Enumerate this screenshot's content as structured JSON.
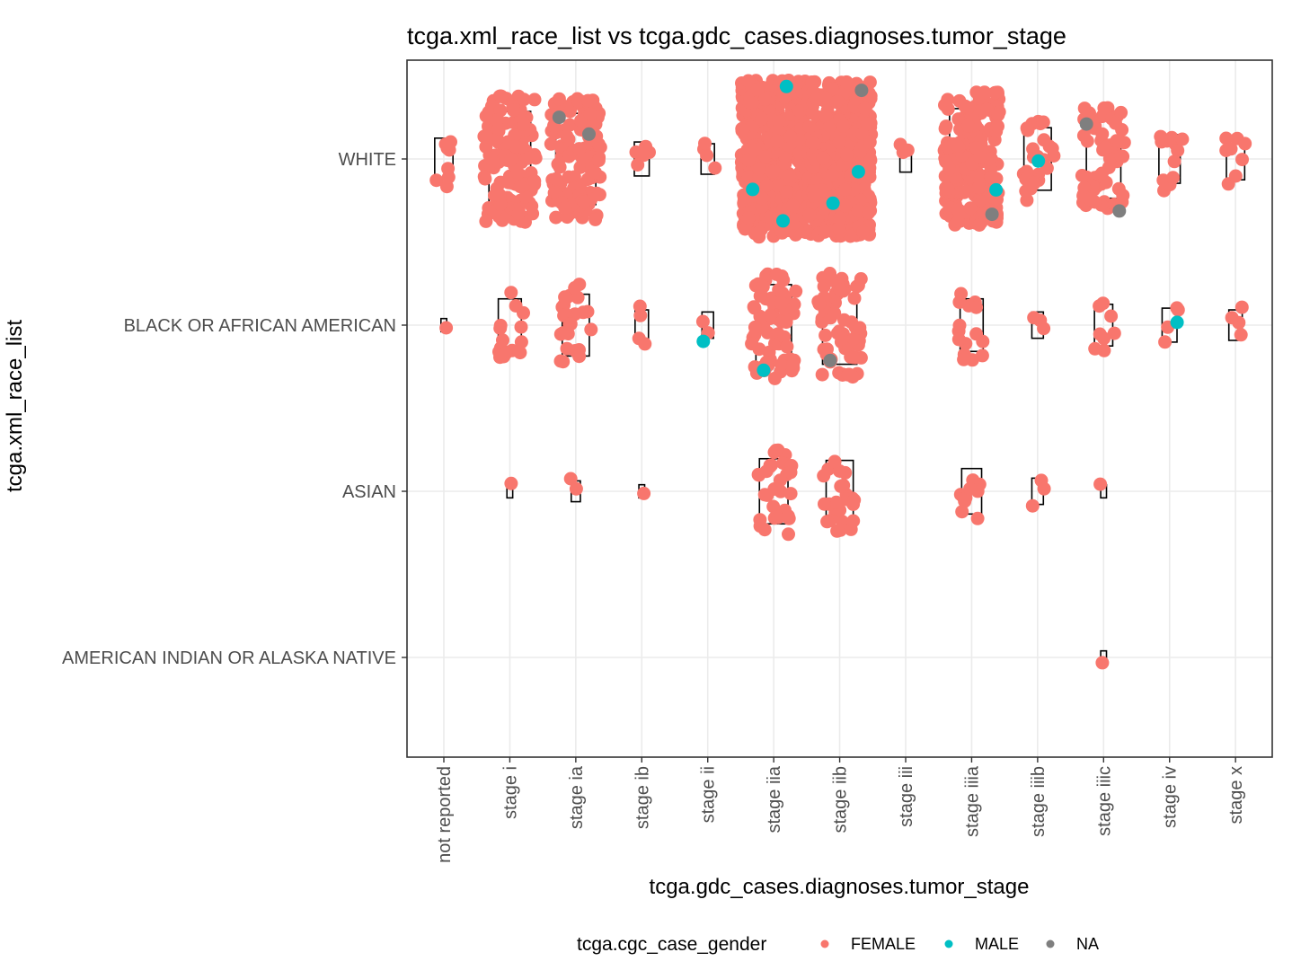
{
  "chart_data": {
    "type": "scatter",
    "subtype": "jittered strip plot with boxplots",
    "title": "tcga.xml_race_list vs tcga.gdc_cases.diagnoses.tumor_stage",
    "xlabel": "tcga.gdc_cases.diagnoses.tumor_stage",
    "ylabel": "tcga.xml_race_list",
    "x_categories": [
      "not reported",
      "stage i",
      "stage ia",
      "stage ib",
      "stage ii",
      "stage iia",
      "stage iib",
      "stage iii",
      "stage iiia",
      "stage iiib",
      "stage iiic",
      "stage iv",
      "stage x"
    ],
    "y_categories": [
      "WHITE",
      "BLACK OR AFRICAN AMERICAN",
      "ASIAN",
      "AMERICAN INDIAN OR ALASKA NATIVE"
    ],
    "legend": {
      "title": "tcga.cgc_case_gender",
      "placement": "bottom",
      "entries": [
        {
          "label": "FEMALE",
          "color": "#F8766D"
        },
        {
          "label": "MALE",
          "color": "#00BFC4"
        },
        {
          "label": "NA",
          "color": "#7F7F7F"
        }
      ]
    },
    "grid": true,
    "groups": [
      {
        "race": "WHITE",
        "stage": "not reported",
        "female": 8,
        "male": 0,
        "na": 0
      },
      {
        "race": "WHITE",
        "stage": "stage i",
        "female": 150,
        "male": 0,
        "na": 0
      },
      {
        "race": "WHITE",
        "stage": "stage ia",
        "female": 120,
        "male": 0,
        "na": 2
      },
      {
        "race": "WHITE",
        "stage": "stage ib",
        "female": 5,
        "male": 0,
        "na": 0
      },
      {
        "race": "WHITE",
        "stage": "stage ii",
        "female": 4,
        "male": 0,
        "na": 0
      },
      {
        "race": "WHITE",
        "stage": "stage iia",
        "female": 500,
        "male": 3,
        "na": 0
      },
      {
        "race": "WHITE",
        "stage": "stage iib",
        "female": 450,
        "male": 2,
        "na": 1
      },
      {
        "race": "WHITE",
        "stage": "stage iii",
        "female": 3,
        "male": 0,
        "na": 0
      },
      {
        "race": "WHITE",
        "stage": "stage iiia",
        "female": 200,
        "male": 1,
        "na": 1
      },
      {
        "race": "WHITE",
        "stage": "stage iiib",
        "female": 25,
        "male": 1,
        "na": 0
      },
      {
        "race": "WHITE",
        "stage": "stage iiic",
        "female": 60,
        "male": 0,
        "na": 2
      },
      {
        "race": "WHITE",
        "stage": "stage iv",
        "female": 12,
        "male": 0,
        "na": 0
      },
      {
        "race": "WHITE",
        "stage": "stage x",
        "female": 8,
        "male": 0,
        "na": 0
      },
      {
        "race": "BLACK OR AFRICAN AMERICAN",
        "stage": "not reported",
        "female": 1,
        "male": 0,
        "na": 0
      },
      {
        "race": "BLACK OR AFRICAN AMERICAN",
        "stage": "stage i",
        "female": 15,
        "male": 0,
        "na": 0
      },
      {
        "race": "BLACK OR AFRICAN AMERICAN",
        "stage": "stage ia",
        "female": 25,
        "male": 0,
        "na": 0
      },
      {
        "race": "BLACK OR AFRICAN AMERICAN",
        "stage": "stage ib",
        "female": 4,
        "male": 0,
        "na": 0
      },
      {
        "race": "BLACK OR AFRICAN AMERICAN",
        "stage": "stage ii",
        "female": 2,
        "male": 1,
        "na": 0
      },
      {
        "race": "BLACK OR AFRICAN AMERICAN",
        "stage": "stage iia",
        "female": 70,
        "male": 1,
        "na": 0
      },
      {
        "race": "BLACK OR AFRICAN AMERICAN",
        "stage": "stage iib",
        "female": 60,
        "male": 0,
        "na": 1
      },
      {
        "race": "BLACK OR AFRICAN AMERICAN",
        "stage": "stage iiia",
        "female": 15,
        "male": 0,
        "na": 0
      },
      {
        "race": "BLACK OR AFRICAN AMERICAN",
        "stage": "stage iiib",
        "female": 3,
        "male": 0,
        "na": 0
      },
      {
        "race": "BLACK OR AFRICAN AMERICAN",
        "stage": "stage iiic",
        "female": 8,
        "male": 0,
        "na": 0
      },
      {
        "race": "BLACK OR AFRICAN AMERICAN",
        "stage": "stage iv",
        "female": 4,
        "male": 1,
        "na": 0
      },
      {
        "race": "BLACK OR AFRICAN AMERICAN",
        "stage": "stage x",
        "female": 4,
        "male": 0,
        "na": 0
      },
      {
        "race": "ASIAN",
        "stage": "stage i",
        "female": 1,
        "male": 0,
        "na": 0
      },
      {
        "race": "ASIAN",
        "stage": "stage ia",
        "female": 2,
        "male": 0,
        "na": 0
      },
      {
        "race": "ASIAN",
        "stage": "stage ib",
        "female": 1,
        "male": 0,
        "na": 0
      },
      {
        "race": "ASIAN",
        "stage": "stage iia",
        "female": 30,
        "male": 0,
        "na": 0
      },
      {
        "race": "ASIAN",
        "stage": "stage iib",
        "female": 25,
        "male": 0,
        "na": 0
      },
      {
        "race": "ASIAN",
        "stage": "stage iiia",
        "female": 10,
        "male": 0,
        "na": 0
      },
      {
        "race": "ASIAN",
        "stage": "stage iiib",
        "female": 3,
        "male": 0,
        "na": 0
      },
      {
        "race": "ASIAN",
        "stage": "stage iiic",
        "female": 1,
        "male": 0,
        "na": 0
      },
      {
        "race": "AMERICAN INDIAN OR ALASKA NATIVE",
        "stage": "stage iiic",
        "female": 1,
        "male": 0,
        "na": 0
      }
    ]
  }
}
